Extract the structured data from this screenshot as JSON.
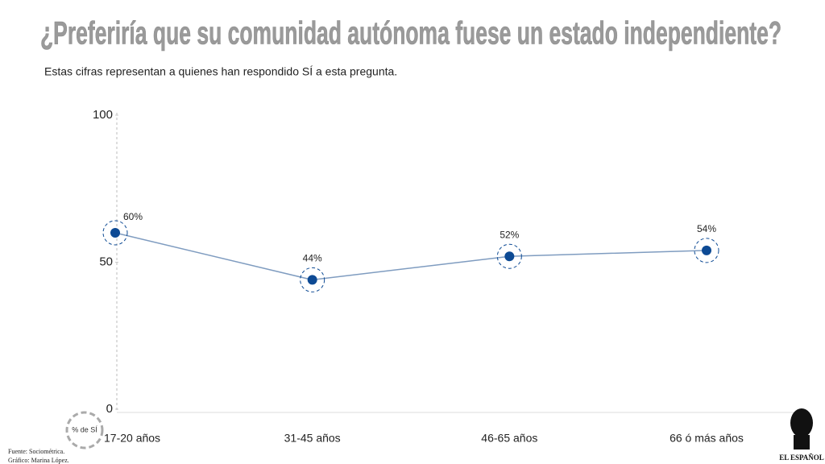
{
  "chart_data": {
    "type": "line",
    "title": "¿Preferiría que su comunidad autónoma fuese un estado independiente?",
    "subtitle": "Estas cifras representan a quienes han respondido SÍ a esta pregunta.",
    "y_label": "% de SÍ",
    "categories": [
      "17-20 años",
      "31-45 años",
      "46-65 años",
      "66 ó más años"
    ],
    "series": [
      {
        "color": "#0d4a94",
        "values": [
          60,
          44,
          52,
          54
        ],
        "value_labels": [
          "60%",
          "44%",
          "52%",
          "54%"
        ]
      }
    ],
    "ylim": [
      0,
      100
    ],
    "yticks": [
      0,
      50,
      100
    ],
    "source": [
      "Fuente: Sociométrica.",
      "Gráfico: Marina López."
    ],
    "logo": "EL ESPAÑOL"
  }
}
